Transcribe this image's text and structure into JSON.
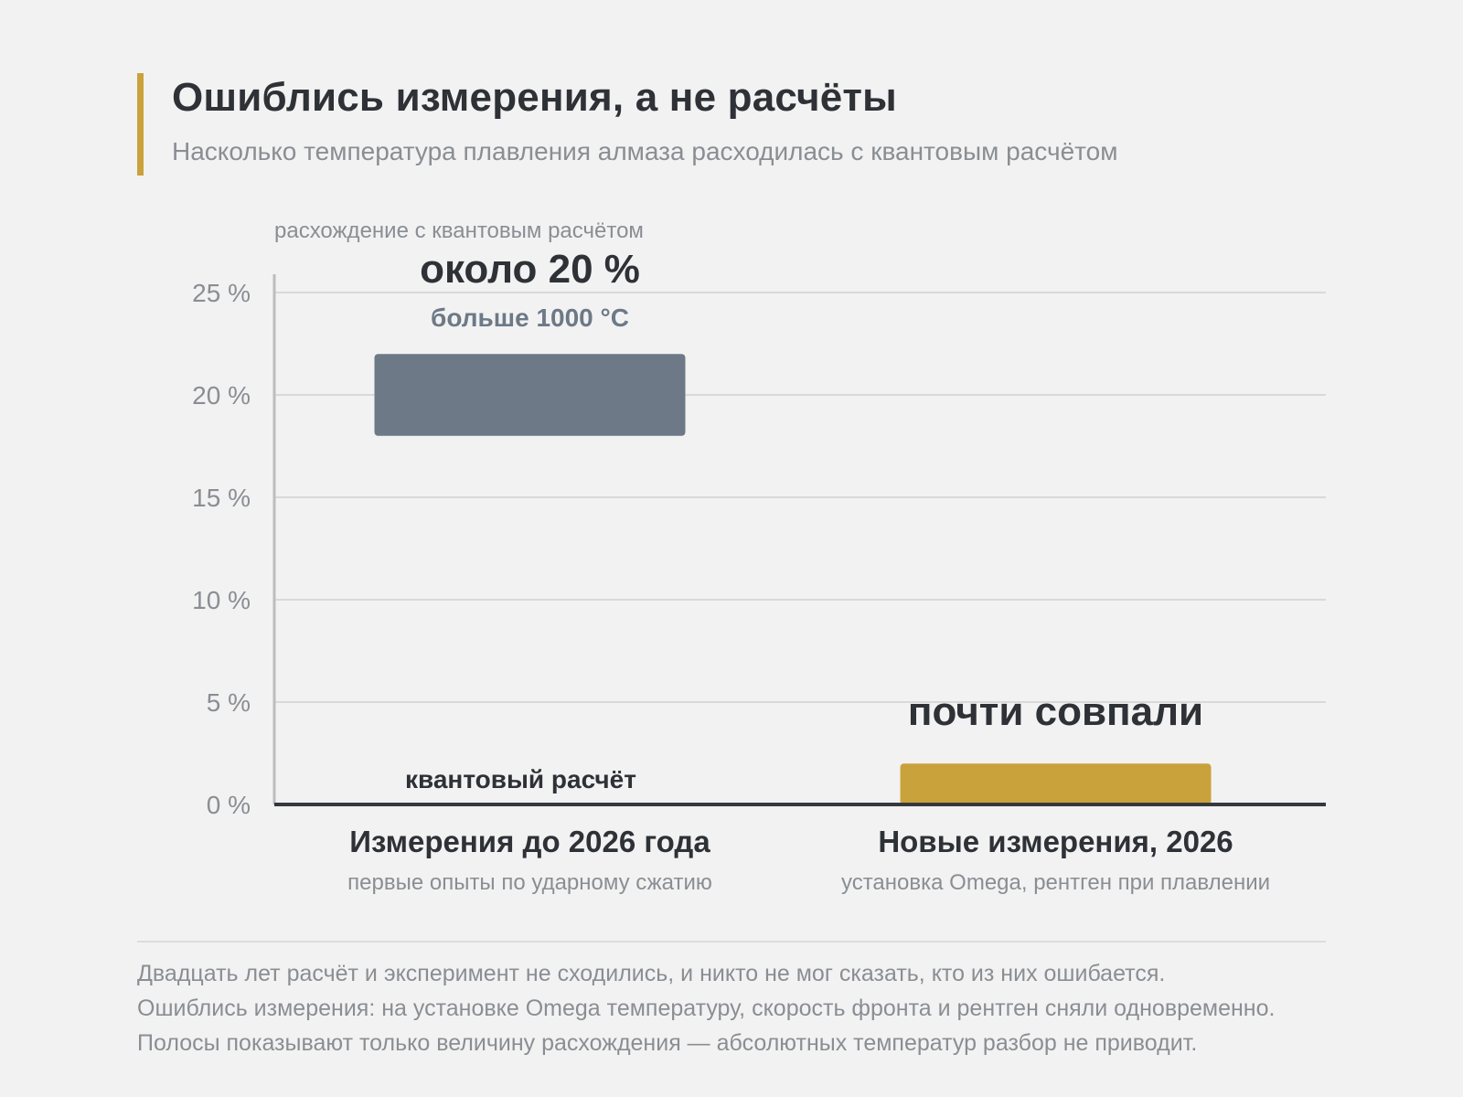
{
  "header": {
    "title": "Ошиблись измерения, а не расчёты",
    "subtitle": "Насколько температура плавления алмаза расходилась с квантовым расчётом"
  },
  "chart_data": {
    "type": "bar",
    "ylabel": "расхождение с квантовым расчётом",
    "ylim": [
      0,
      25
    ],
    "yticks": [
      0,
      5,
      10,
      15,
      20,
      25
    ],
    "ytick_labels": [
      "0 %",
      "5 %",
      "10 %",
      "15 %",
      "20 %",
      "25 %"
    ],
    "grid": true,
    "baseline_label": "квантовый расчёт",
    "categories": [
      {
        "label": "Измерения до 2026 года",
        "sublabel": "первые опыты по ударному сжатию",
        "range": [
          18,
          22
        ],
        "value_label": "около 20 %",
        "value_sublabel": "больше 1000 °C",
        "color": "#6d7986"
      },
      {
        "label": "Новые измерения, 2026",
        "sublabel": "установка Omega, рентген при плавлении",
        "range": [
          0,
          2
        ],
        "value_label": "почти совпали",
        "value_sublabel": "",
        "color": "#c9a23c"
      }
    ]
  },
  "notes": [
    "Двадцать лет расчёт и эксперимент не сходились, и никто не мог сказать, кто из них ошибается.",
    "Ошиблись измерения: на установке Omega температуру, скорость фронта и рентген сняли одновременно.",
    "Полосы показывают только величину расхождения — абсолютных температур разбор не приводит."
  ]
}
